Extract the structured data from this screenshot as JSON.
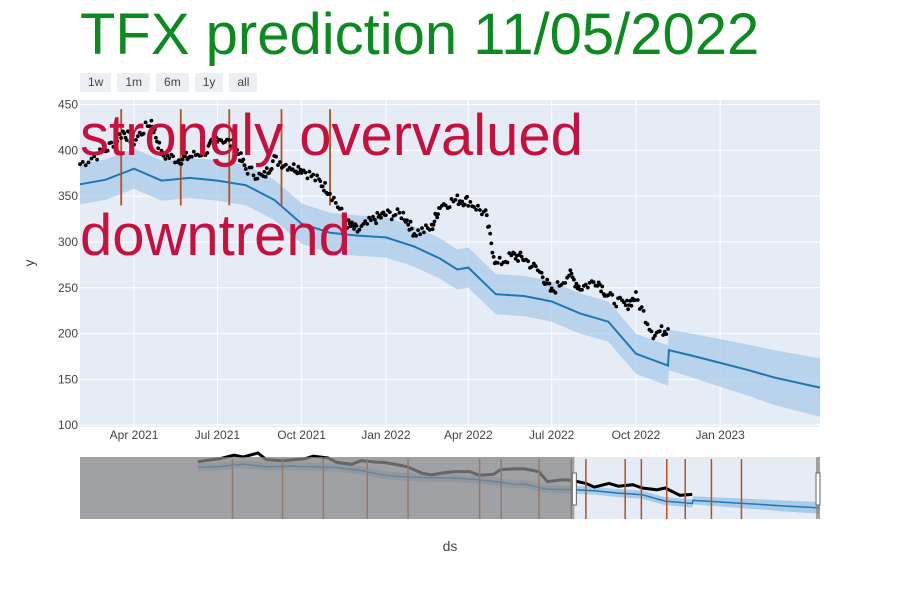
{
  "title": "TFX prediction 11/05/2022",
  "range_buttons": [
    "1w",
    "1m",
    "6m",
    "1y",
    "all"
  ],
  "annotations": [
    "strongly overvalued",
    "downtrend"
  ],
  "colors": {
    "title": "#0a8a1f",
    "annotation": "#c8103e",
    "trend": "#1f77b4",
    "band": "#a9cbe8",
    "actual": "#000000",
    "event_line": "#b5501f",
    "plot_bg": "#e5ecf6",
    "rangeslider_mask": "#888888"
  },
  "chart_data": {
    "type": "line",
    "xlabel": "ds",
    "ylabel": "y",
    "x_tick_labels": [
      "Apr 2021",
      "Jul 2021",
      "Oct 2021",
      "Jan 2022",
      "Apr 2022",
      "Jul 2022",
      "Oct 2022",
      "Jan 2023"
    ],
    "x_tick_dates": [
      "2021-04-01",
      "2021-07-01",
      "2021-10-01",
      "2022-01-01",
      "2022-04-01",
      "2022-07-01",
      "2022-10-01",
      "2023-01-01"
    ],
    "xlim": [
      "2021-02-01",
      "2023-04-20"
    ],
    "y_ticks": [
      100,
      150,
      200,
      250,
      300,
      350,
      400,
      450
    ],
    "ylim": [
      98,
      455
    ],
    "grid": true,
    "legend": "none",
    "series": [
      {
        "kind": "forecast",
        "x": [
          "2021-02-01",
          "2021-03-01",
          "2021-04-01",
          "2021-05-01",
          "2021-06-01",
          "2021-07-01",
          "2021-08-01",
          "2021-09-01",
          "2021-10-01",
          "2021-11-01",
          "2021-12-01",
          "2022-01-01",
          "2022-02-01",
          "2022-03-01",
          "2022-03-20",
          "2022-04-01",
          "2022-05-01",
          "2022-06-01",
          "2022-07-01",
          "2022-08-01",
          "2022-09-01",
          "2022-10-01",
          "2022-11-05",
          "2022-11-06",
          "2022-12-01",
          "2023-01-01",
          "2023-02-01",
          "2023-03-01",
          "2023-04-20"
        ],
        "yhat": [
          363,
          368,
          380,
          367,
          370,
          367,
          362,
          346,
          320,
          310,
          307,
          305,
          295,
          282,
          270,
          272,
          243,
          241,
          235,
          222,
          213,
          178,
          165,
          182,
          176,
          168,
          160,
          152,
          141
        ]
      },
      {
        "kind": "uncertainty_band",
        "x": [
          "2021-02-01",
          "2021-03-01",
          "2021-04-01",
          "2021-05-01",
          "2021-06-01",
          "2021-07-01",
          "2021-08-01",
          "2021-09-01",
          "2021-10-01",
          "2021-11-01",
          "2021-12-01",
          "2022-01-01",
          "2022-02-01",
          "2022-03-01",
          "2022-03-20",
          "2022-04-01",
          "2022-05-01",
          "2022-06-01",
          "2022-07-01",
          "2022-08-01",
          "2022-09-01",
          "2022-10-01",
          "2022-11-05",
          "2022-11-06",
          "2022-12-01",
          "2023-01-01",
          "2023-02-01",
          "2023-03-01",
          "2023-04-20"
        ],
        "lower": [
          341,
          346,
          358,
          345,
          348,
          345,
          340,
          324,
          298,
          288,
          285,
          283,
          273,
          260,
          248,
          250,
          221,
          219,
          213,
          200,
          191,
          156,
          143,
          160,
          152,
          142,
          132,
          122,
          109
        ],
        "upper": [
          385,
          390,
          402,
          389,
          392,
          389,
          384,
          368,
          342,
          332,
          329,
          327,
          317,
          304,
          292,
          294,
          265,
          263,
          257,
          244,
          235,
          200,
          187,
          204,
          200,
          194,
          188,
          182,
          173
        ]
      },
      {
        "kind": "actual",
        "x": [
          "2021-02-01",
          "2021-03-01",
          "2021-03-20",
          "2021-04-01",
          "2021-04-20",
          "2021-05-01",
          "2021-05-20",
          "2021-06-01",
          "2021-06-20",
          "2021-07-01",
          "2021-07-20",
          "2021-08-01",
          "2021-08-20",
          "2021-09-01",
          "2021-09-20",
          "2021-10-01",
          "2021-10-20",
          "2021-11-01",
          "2021-11-20",
          "2021-12-01",
          "2021-12-20",
          "2022-01-01",
          "2022-01-20",
          "2022-02-01",
          "2022-02-20",
          "2022-03-01",
          "2022-03-20",
          "2022-04-01",
          "2022-04-20",
          "2022-05-01",
          "2022-05-20",
          "2022-06-01",
          "2022-06-20",
          "2022-07-01",
          "2022-07-20",
          "2022-08-01",
          "2022-08-20",
          "2022-09-01",
          "2022-09-20",
          "2022-10-01",
          "2022-10-20",
          "2022-11-05"
        ],
        "y": [
          385,
          400,
          420,
          410,
          432,
          395,
          390,
          393,
          400,
          415,
          405,
          380,
          370,
          390,
          382,
          380,
          366,
          355,
          320,
          312,
          325,
          330,
          330,
          310,
          315,
          340,
          346,
          345,
          330,
          275,
          285,
          282,
          265,
          245,
          265,
          250,
          258,
          240,
          230,
          240,
          200,
          205
        ]
      }
    ],
    "event_lines": [
      "2021-03-18",
      "2021-05-22",
      "2021-07-14",
      "2021-09-09",
      "2021-11-01"
    ],
    "rangeslider": {
      "selected_start": "2022-06-05",
      "selected_end": "2023-04-20",
      "event_lines": [
        "2021-03-18",
        "2021-05-22",
        "2021-07-14",
        "2021-09-09",
        "2021-11-01",
        "2022-02-02",
        "2022-03-02",
        "2022-04-20",
        "2022-06-01",
        "2022-06-20",
        "2022-08-10",
        "2022-08-31",
        "2022-10-03",
        "2022-10-27",
        "2022-11-30",
        "2023-01-08"
      ]
    }
  }
}
